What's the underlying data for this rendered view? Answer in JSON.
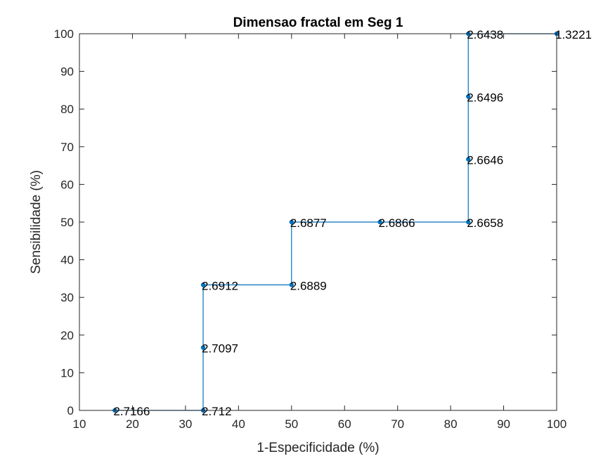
{
  "chart_data": {
    "type": "line",
    "title": "Dimensao fractal em Seg 1",
    "xlabel": "1-Especificidade (%)",
    "ylabel": "Sensibilidade (%)",
    "xlim": [
      10,
      100
    ],
    "ylim": [
      0,
      100
    ],
    "xticks": [
      10,
      20,
      30,
      40,
      50,
      60,
      70,
      80,
      90,
      100
    ],
    "yticks": [
      0,
      10,
      20,
      30,
      40,
      50,
      60,
      70,
      80,
      90,
      100
    ],
    "grid": false,
    "line_style": "stairs",
    "series": [
      {
        "color": "#0072BD",
        "x": [
          16.67,
          33.33,
          33.33,
          33.33,
          50.0,
          50.0,
          66.67,
          83.33,
          83.33,
          83.33,
          83.33,
          100.0
        ],
        "y": [
          0,
          0,
          16.67,
          33.33,
          33.33,
          50.0,
          50.0,
          50.0,
          66.67,
          83.33,
          100.0,
          100.0
        ],
        "point_labels": [
          "2.7166",
          "2.712",
          "2.7097",
          "2.6912",
          "2.6889",
          "2.6877",
          "2.6866",
          "2.6658",
          "2.6646",
          "2.6496",
          "2.6438",
          "1.3221"
        ]
      }
    ]
  }
}
